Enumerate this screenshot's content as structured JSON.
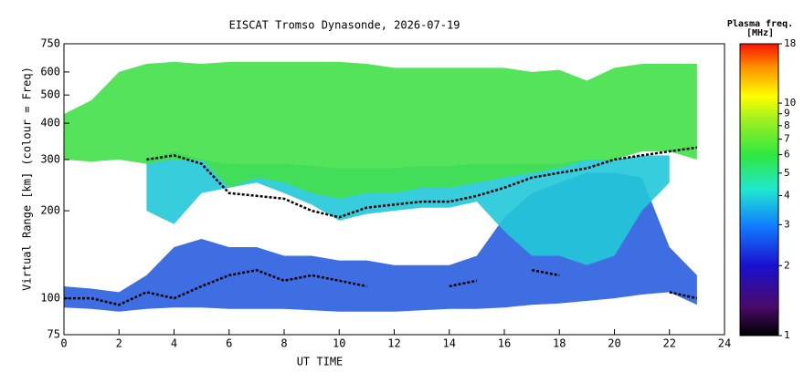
{
  "chart_data": {
    "type": "range",
    "title": "EISCAT Tromso Dynasonde, 2026-07-19",
    "x_label": "UT TIME",
    "y_label": "Virtual Range [km] (colour = Freq)",
    "log_y": true,
    "xlim": [
      0,
      24
    ],
    "xticks": [
      0,
      2,
      4,
      6,
      8,
      10,
      12,
      14,
      16,
      18,
      20,
      22,
      24
    ],
    "ylim": [
      75,
      750
    ],
    "yticks": [
      75,
      100,
      200,
      300,
      400,
      500,
      600,
      750
    ],
    "x": [
      0,
      1,
      2,
      3,
      4,
      5,
      6,
      7,
      8,
      9,
      10,
      11,
      12,
      13,
      14,
      15,
      16,
      17,
      18,
      19,
      20,
      21,
      22,
      23,
      24
    ],
    "series": [
      {
        "color": "#2a5ee0",
        "low": [
          93,
          92,
          90,
          92,
          93,
          93,
          92,
          92,
          92,
          91,
          90,
          90,
          90,
          91,
          92,
          92,
          93,
          95,
          96,
          98,
          100,
          103,
          105,
          95,
          null
        ],
        "high": [
          110,
          108,
          105,
          120,
          150,
          160,
          150,
          150,
          140,
          140,
          135,
          135,
          130,
          130,
          130,
          140,
          190,
          230,
          250,
          270,
          270,
          260,
          150,
          120,
          null
        ]
      },
      {
        "color": "#22c8d8",
        "low": [
          null,
          null,
          null,
          200,
          180,
          230,
          240,
          250,
          230,
          210,
          185,
          195,
          200,
          205,
          205,
          215,
          170,
          140,
          140,
          130,
          140,
          200,
          250,
          null,
          null
        ],
        "high": [
          null,
          null,
          null,
          300,
          320,
          300,
          290,
          290,
          290,
          285,
          280,
          280,
          280,
          285,
          285,
          290,
          290,
          290,
          290,
          300,
          300,
          310,
          310,
          null,
          null
        ]
      },
      {
        "color": "#44e04a",
        "low": [
          300,
          295,
          300,
          290,
          300,
          300,
          240,
          260,
          250,
          230,
          220,
          230,
          230,
          240,
          240,
          250,
          260,
          270,
          280,
          300,
          300,
          320,
          320,
          300,
          null
        ],
        "high": [
          430,
          480,
          600,
          640,
          650,
          640,
          650,
          650,
          650,
          650,
          650,
          640,
          620,
          620,
          620,
          620,
          620,
          600,
          610,
          560,
          620,
          640,
          640,
          640,
          null
        ]
      },
      {
        "color": "#000000",
        "values": [
          null,
          null,
          null,
          300,
          310,
          290,
          230,
          225,
          220,
          200,
          190,
          205,
          210,
          215,
          215,
          225,
          240,
          260,
          270,
          280,
          300,
          310,
          320,
          330,
          null
        ]
      },
      {
        "color": "#000000",
        "values": [
          100,
          100,
          95,
          105,
          100,
          110,
          120,
          125,
          115,
          120,
          115,
          110,
          null,
          null,
          110,
          115,
          null,
          125,
          120,
          null,
          null,
          null,
          105,
          100,
          null
        ]
      }
    ],
    "colorbar": {
      "label": "Plasma freq.",
      "unit": "[MHz]",
      "log": true,
      "lim": [
        1,
        18
      ],
      "ticks": [
        1,
        2,
        3,
        4,
        5,
        6,
        7,
        8,
        9,
        10,
        18
      ]
    }
  }
}
